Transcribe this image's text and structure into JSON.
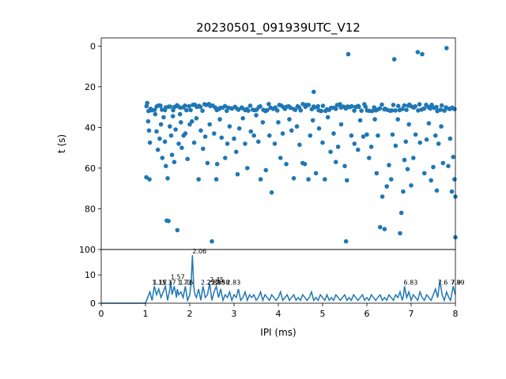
{
  "chart_data": [
    {
      "type": "scatter",
      "title": "20230501_091939UTC_V12",
      "ylabel": "t (s)",
      "ylim": [
        100,
        -4
      ],
      "y_inverted": true,
      "yticks": [
        0,
        20,
        40,
        60,
        80,
        100
      ],
      "color": "#1f77b4",
      "dense_band": {
        "y": [
          28.5,
          32
        ],
        "x": [
          1.0,
          8.0
        ],
        "points_per_ms": 22
      },
      "points": [
        [
          1.04,
          28.0
        ],
        [
          1.06,
          37.0
        ],
        [
          1.08,
          41.5
        ],
        [
          1.1,
          47.5
        ],
        [
          1.02,
          64.5
        ],
        [
          1.09,
          65.5
        ],
        [
          1.22,
          33.5
        ],
        [
          1.25,
          42.0
        ],
        [
          1.28,
          51.0
        ],
        [
          1.32,
          45.5
        ],
        [
          1.35,
          38.5
        ],
        [
          1.38,
          55.0
        ],
        [
          1.41,
          35.0
        ],
        [
          1.44,
          47.0
        ],
        [
          1.46,
          59.0
        ],
        [
          1.48,
          85.8
        ],
        [
          1.52,
          86.0
        ],
        [
          1.5,
          65.0
        ],
        [
          1.55,
          39.5
        ],
        [
          1.58,
          44.0
        ],
        [
          1.6,
          53.5
        ],
        [
          1.62,
          34.5
        ],
        [
          1.65,
          57.0
        ],
        [
          1.68,
          41.0
        ],
        [
          1.72,
          90.5
        ],
        [
          1.75,
          48.0
        ],
        [
          1.78,
          33.5
        ],
        [
          1.8,
          37.5
        ],
        [
          1.82,
          50.0
        ],
        [
          1.86,
          44.0
        ],
        [
          1.9,
          43.0
        ],
        [
          1.95,
          55.5
        ],
        [
          2.0,
          38.5
        ],
        [
          2.05,
          37.0
        ],
        [
          2.1,
          47.5
        ],
        [
          2.15,
          35.5
        ],
        [
          2.2,
          65.5
        ],
        [
          2.25,
          41.5
        ],
        [
          2.3,
          50.5
        ],
        [
          2.35,
          44.5
        ],
        [
          2.4,
          57.5
        ],
        [
          2.45,
          38.5
        ],
        [
          2.5,
          96.0
        ],
        [
          2.55,
          43.0
        ],
        [
          2.6,
          65.5
        ],
        [
          2.62,
          58.0
        ],
        [
          2.68,
          36.0
        ],
        [
          2.72,
          45.0
        ],
        [
          2.8,
          55.0
        ],
        [
          2.85,
          48.0
        ],
        [
          2.9,
          39.5
        ],
        [
          3.0,
          45.5
        ],
        [
          3.05,
          52.0
        ],
        [
          3.08,
          63.0
        ],
        [
          3.12,
          40.5
        ],
        [
          3.2,
          35.5
        ],
        [
          3.25,
          48.0
        ],
        [
          3.3,
          60.0
        ],
        [
          3.38,
          42.0
        ],
        [
          3.45,
          44.0
        ],
        [
          3.5,
          34.0
        ],
        [
          3.55,
          47.0
        ],
        [
          3.6,
          65.5
        ],
        [
          3.65,
          37.5
        ],
        [
          3.72,
          61.0
        ],
        [
          3.8,
          44.0
        ],
        [
          3.85,
          72.0
        ],
        [
          3.92,
          48.0
        ],
        [
          4.0,
          37.5
        ],
        [
          4.05,
          55.0
        ],
        [
          4.1,
          43.0
        ],
        [
          4.18,
          58.0
        ],
        [
          4.25,
          36.0
        ],
        [
          4.3,
          41.5
        ],
        [
          4.35,
          65.0
        ],
        [
          4.42,
          39.5
        ],
        [
          4.48,
          48.5
        ],
        [
          4.55,
          57.5
        ],
        [
          4.6,
          58.0
        ],
        [
          4.68,
          65.5
        ],
        [
          4.72,
          44.0
        ],
        [
          4.8,
          22.5
        ],
        [
          4.78,
          36.5
        ],
        [
          4.85,
          62.5
        ],
        [
          4.92,
          40.5
        ],
        [
          5.0,
          47.5
        ],
        [
          5.05,
          65.5
        ],
        [
          5.12,
          35.0
        ],
        [
          5.18,
          52.0
        ],
        [
          5.25,
          43.0
        ],
        [
          5.3,
          57.0
        ],
        [
          5.35,
          49.5
        ],
        [
          5.42,
          38.5
        ],
        [
          5.5,
          59.0
        ],
        [
          5.53,
          96.0
        ],
        [
          5.55,
          66.0
        ],
        [
          5.58,
          4.0
        ],
        [
          5.65,
          44.0
        ],
        [
          5.72,
          48.0
        ],
        [
          5.8,
          51.0
        ],
        [
          5.85,
          36.5
        ],
        [
          5.92,
          44.5
        ],
        [
          6.0,
          43.5
        ],
        [
          6.05,
          55.0
        ],
        [
          6.1,
          49.5
        ],
        [
          6.18,
          36.0
        ],
        [
          6.22,
          62.5
        ],
        [
          6.25,
          44.0
        ],
        [
          6.3,
          89.0
        ],
        [
          6.35,
          74.0
        ],
        [
          6.4,
          90.0
        ],
        [
          6.45,
          69.0
        ],
        [
          6.5,
          58.5
        ],
        [
          6.55,
          65.5
        ],
        [
          6.58,
          43.5
        ],
        [
          6.62,
          6.5
        ],
        [
          6.65,
          49.0
        ],
        [
          6.7,
          36.0
        ],
        [
          6.75,
          92.0
        ],
        [
          6.78,
          82.0
        ],
        [
          6.82,
          71.5
        ],
        [
          6.85,
          56.0
        ],
        [
          6.88,
          47.0
        ],
        [
          6.92,
          60.5
        ],
        [
          6.95,
          38.5
        ],
        [
          7.0,
          68.5
        ],
        [
          7.05,
          55.0
        ],
        [
          7.1,
          43.5
        ],
        [
          7.15,
          3.0
        ],
        [
          7.2,
          47.5
        ],
        [
          7.25,
          4.0
        ],
        [
          7.3,
          62.5
        ],
        [
          7.35,
          46.0
        ],
        [
          7.4,
          38.0
        ],
        [
          7.45,
          66.0
        ],
        [
          7.5,
          59.5
        ],
        [
          7.55,
          44.0
        ],
        [
          7.58,
          71.0
        ],
        [
          7.62,
          48.0
        ],
        [
          7.68,
          39.5
        ],
        [
          7.72,
          57.5
        ],
        [
          7.8,
          1.0
        ],
        [
          7.84,
          59.0
        ],
        [
          7.88,
          45.5
        ],
        [
          7.92,
          71.5
        ],
        [
          7.95,
          54.5
        ],
        [
          7.98,
          65.5
        ],
        [
          8.0,
          74.0
        ],
        [
          8.0,
          94.0
        ]
      ]
    },
    {
      "type": "line",
      "xlabel": "IPI (ms)",
      "xlim": [
        0,
        8
      ],
      "ylim": [
        0,
        19
      ],
      "xticks": [
        0,
        1,
        2,
        3,
        4,
        5,
        6,
        7,
        8
      ],
      "yticks": [
        0,
        10
      ],
      "color": "#1f77b4",
      "series": [
        {
          "x": [
            0.0,
            1.0,
            1.05,
            1.1,
            1.15,
            1.2,
            1.25,
            1.3,
            1.35,
            1.4,
            1.45,
            1.5,
            1.55,
            1.57,
            1.6,
            1.65,
            1.7,
            1.72,
            1.75,
            1.8,
            1.85,
            1.9,
            1.95,
            2.0,
            2.03,
            2.06,
            2.09,
            2.12,
            2.15,
            2.2,
            2.25,
            2.3,
            2.35,
            2.4,
            2.45,
            2.5,
            2.55,
            2.6,
            2.65,
            2.7,
            2.75,
            2.8,
            2.85,
            2.9,
            2.95,
            3.0,
            3.05,
            3.1,
            3.15,
            3.2,
            3.25,
            3.3,
            3.35,
            3.4,
            3.45,
            3.5,
            3.55,
            3.6,
            3.65,
            3.7,
            3.75,
            3.8,
            3.85,
            3.9,
            3.95,
            4.0,
            4.05,
            4.1,
            4.15,
            4.2,
            4.25,
            4.3,
            4.35,
            4.4,
            4.45,
            4.5,
            4.55,
            4.6,
            4.65,
            4.7,
            4.75,
            4.8,
            4.85,
            4.9,
            4.95,
            5.0,
            5.05,
            5.1,
            5.15,
            5.2,
            5.25,
            5.3,
            5.35,
            5.4,
            5.45,
            5.5,
            5.55,
            5.6,
            5.65,
            5.7,
            5.75,
            5.8,
            5.85,
            5.9,
            5.95,
            6.0,
            6.05,
            6.1,
            6.15,
            6.2,
            6.25,
            6.3,
            6.35,
            6.4,
            6.45,
            6.5,
            6.55,
            6.6,
            6.65,
            6.7,
            6.75,
            6.8,
            6.83,
            6.85,
            6.9,
            6.95,
            7.0,
            7.05,
            7.1,
            7.15,
            7.2,
            7.25,
            7.3,
            7.35,
            7.4,
            7.45,
            7.5,
            7.55,
            7.6,
            7.65,
            7.7,
            7.75,
            7.8,
            7.85,
            7.89,
            7.95,
            8.0
          ],
          "y": [
            0,
            0,
            2,
            4,
            1,
            6,
            3,
            5,
            2,
            4,
            6,
            1,
            5,
            8,
            3,
            6,
            2,
            5,
            3,
            4,
            2,
            6,
            1,
            3,
            7,
            17,
            6,
            3,
            2,
            5,
            1,
            6,
            2,
            3,
            7,
            1,
            4,
            6,
            2,
            5,
            1,
            3,
            2,
            4,
            1,
            3,
            2,
            5,
            1,
            2,
            4,
            1,
            3,
            2,
            3,
            1,
            2,
            4,
            1,
            3,
            2,
            1,
            3,
            2,
            1,
            2,
            4,
            1,
            2,
            3,
            1,
            2,
            3,
            1,
            2,
            1,
            3,
            2,
            1,
            2,
            4,
            1,
            2,
            1,
            3,
            2,
            1,
            3,
            1,
            2,
            1,
            3,
            2,
            1,
            2,
            3,
            1,
            2,
            1,
            3,
            2,
            1,
            2,
            3,
            1,
            2,
            1,
            3,
            2,
            1,
            2,
            3,
            1,
            2,
            1,
            3,
            2,
            1,
            3,
            2,
            4,
            1,
            3,
            6,
            2,
            4,
            1,
            3,
            2,
            1,
            4,
            2,
            1,
            3,
            2,
            1,
            3,
            5,
            2,
            8,
            3,
            1,
            4,
            2,
            1,
            6,
            3
          ]
        }
      ],
      "annotations": [
        {
          "x": 1.15,
          "label": "1.15"
        },
        {
          "x": 1.17,
          "label": "1.17"
        },
        {
          "x": 1.37,
          "label": "1.37"
        },
        {
          "x": 1.57,
          "label": "1.57"
        },
        {
          "x": 1.72,
          "label": "1.72"
        },
        {
          "x": 1.76,
          "label": "1.76"
        },
        {
          "x": 2.06,
          "label": "2.06"
        },
        {
          "x": 2.25,
          "label": "2.25"
        },
        {
          "x": 2.39,
          "label": "2.39"
        },
        {
          "x": 2.45,
          "label": "2.45"
        },
        {
          "x": 2.48,
          "label": "2.48"
        },
        {
          "x": 2.58,
          "label": "2.58"
        },
        {
          "x": 2.83,
          "label": "2.83"
        },
        {
          "x": 6.83,
          "label": "6.83"
        },
        {
          "x": 7.6,
          "label": "7.6"
        },
        {
          "x": 7.89,
          "label": "7.89"
        },
        {
          "x": 7.9,
          "label": "7.9"
        }
      ]
    }
  ]
}
